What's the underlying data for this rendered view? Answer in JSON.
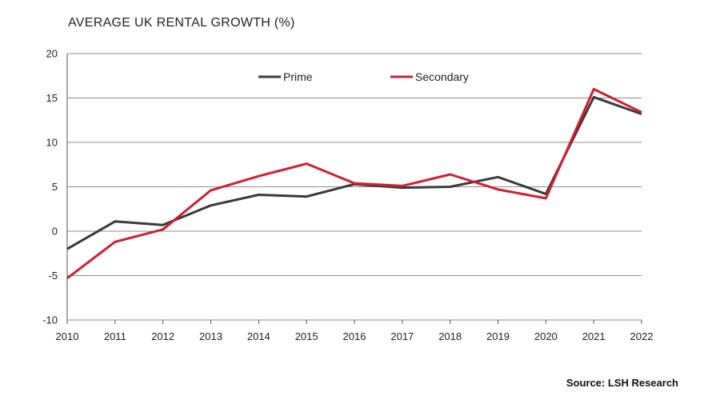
{
  "chart_data": {
    "type": "line",
    "title": "AVERAGE UK RENTAL GROWTH (%)",
    "source": "Source: LSH Research",
    "xlabel": "",
    "ylabel": "",
    "x": [
      "2010",
      "2011",
      "2012",
      "2013",
      "2014",
      "2015",
      "2016",
      "2017",
      "2018",
      "2019",
      "2020",
      "2021",
      "2022"
    ],
    "ylim": [
      -10,
      20
    ],
    "yticks": [
      20,
      15,
      10,
      5,
      0,
      -5,
      -10
    ],
    "ytick_labels": [
      "20",
      "15",
      "10",
      "5",
      "0",
      "-5",
      "-10"
    ],
    "grid": true,
    "legend_position": "top-center",
    "series": [
      {
        "name": "Prime",
        "color": "#3a3a3a",
        "values": [
          -2.0,
          1.1,
          0.7,
          2.9,
          4.1,
          3.9,
          5.3,
          4.9,
          5.0,
          6.1,
          4.2,
          15.1,
          13.2
        ]
      },
      {
        "name": "Secondary",
        "color": "#d0202e",
        "values": [
          -5.3,
          -1.2,
          0.2,
          4.6,
          6.2,
          7.6,
          5.4,
          5.1,
          6.4,
          4.7,
          3.7,
          16.0,
          13.4
        ]
      }
    ]
  }
}
